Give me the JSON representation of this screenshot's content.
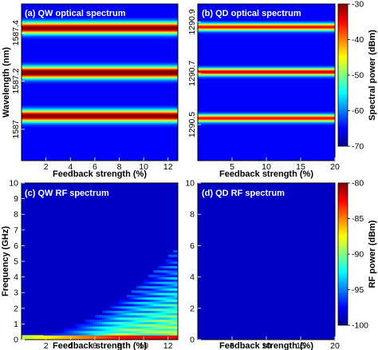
{
  "colormap": [
    "#00008f",
    "#0000ff",
    "#0080ff",
    "#00ffff",
    "#80ff80",
    "#ffff00",
    "#ff8000",
    "#ff0000",
    "#800000"
  ],
  "chart_data": [
    {
      "id": "a",
      "type": "heatmap",
      "title": "(a) QW optical spectrum",
      "xlabel": "Feedback strength (%)",
      "ylabel": "Wavelength (nm)",
      "xlim": [
        0,
        12.8
      ],
      "ylim": [
        1586.87,
        1587.52
      ],
      "xticks": [
        2,
        4,
        6,
        8,
        10,
        12
      ],
      "yticks": [
        1587,
        1587.2,
        1587.4
      ],
      "bands": [
        {
          "center": 1587.055,
          "level_dBm": -36
        },
        {
          "center": 1587.235,
          "level_dBm": -34
        },
        {
          "center": 1587.42,
          "level_dBm": -36
        }
      ]
    },
    {
      "id": "b",
      "type": "heatmap",
      "title": "(b) QD optical spectrum",
      "xlabel": "Feedback strength (%)",
      "ylabel": "",
      "xlim": [
        0,
        20
      ],
      "ylim": [
        1290.36,
        1290.97
      ],
      "xticks": [
        5,
        10,
        15,
        20
      ],
      "yticks": [
        1290.5,
        1290.7,
        1290.9
      ],
      "bands": [
        {
          "center": 1290.525,
          "level_dBm": -42
        },
        {
          "center": 1290.705,
          "level_dBm": -40
        },
        {
          "center": 1290.88,
          "level_dBm": -42
        }
      ]
    },
    {
      "id": "c",
      "type": "heatmap",
      "title": "(c) QW RF spectrum",
      "xlabel": "Feedback strength (%)",
      "ylabel": "Frequency (GHz)",
      "xlim": [
        0,
        12.8
      ],
      "ylim": [
        0,
        10
      ],
      "xticks": [
        2,
        4,
        6,
        8,
        10,
        12
      ],
      "yticks": [
        0,
        1,
        2,
        3,
        4,
        5,
        6,
        7,
        8,
        9,
        10
      ],
      "floor_dBm": -100
    },
    {
      "id": "d",
      "type": "heatmap",
      "title": "(d) QD RF spectrum",
      "xlabel": "Feedback strength (%)",
      "ylabel": "",
      "xlim": [
        0,
        20
      ],
      "ylim": [
        0,
        10
      ],
      "xticks": [
        5,
        10,
        15,
        20
      ],
      "yticks": [
        0,
        2,
        4,
        6,
        8,
        10
      ],
      "floor_dBm": -100
    }
  ],
  "colorbars": [
    {
      "id": "optical",
      "label": "Spectral power (dBm)",
      "range": [
        -70,
        -30
      ],
      "ticks": [
        -70,
        -60,
        -50,
        -40,
        -30
      ]
    },
    {
      "id": "rf",
      "label": "RF power (dBm)",
      "range": [
        -100,
        -80
      ],
      "ticks": [
        -100,
        -95,
        -90,
        -85,
        -80
      ]
    }
  ]
}
